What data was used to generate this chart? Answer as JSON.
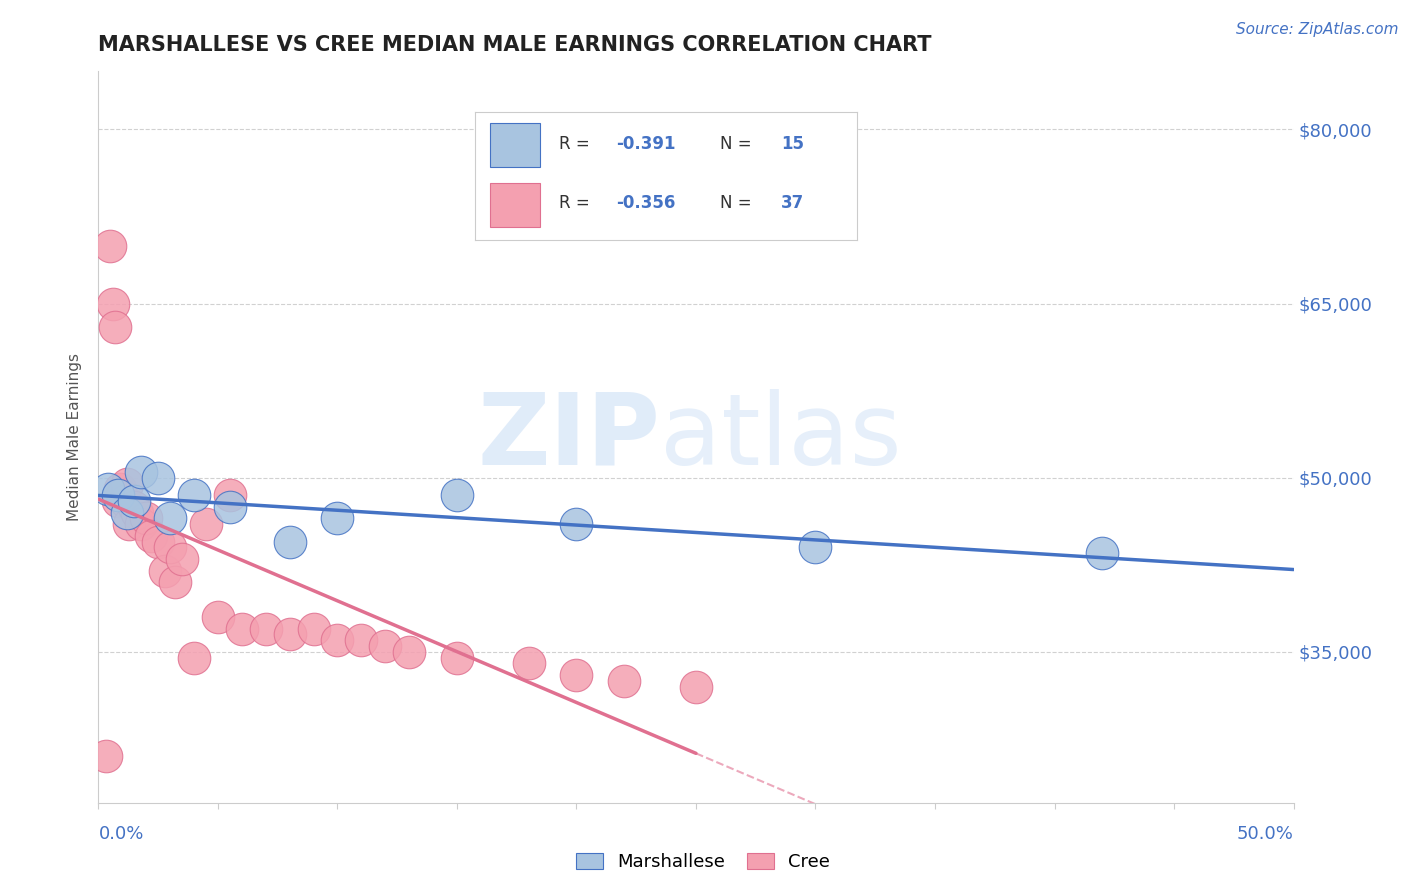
{
  "title": "MARSHALLESE VS CREE MEDIAN MALE EARNINGS CORRELATION CHART",
  "source_text": "Source: ZipAtlas.com",
  "ylabel": "Median Male Earnings",
  "y_ticks": [
    35000,
    50000,
    65000,
    80000
  ],
  "y_tick_labels": [
    "$35,000",
    "$50,000",
    "$65,000",
    "$80,000"
  ],
  "x_range": [
    0.0,
    50.0
  ],
  "y_range": [
    22000,
    85000
  ],
  "marshallese_color": "#a8c4e0",
  "cree_color": "#f4a0b0",
  "marshallese_line_color": "#4472c4",
  "cree_line_color": "#e07090",
  "title_color": "#222222",
  "axis_label_color": "#4472c4",
  "marshallese_x": [
    0.4,
    0.8,
    1.2,
    1.5,
    1.8,
    2.5,
    3.0,
    4.0,
    5.5,
    8.0,
    10.0,
    15.0,
    20.0,
    30.0,
    42.0
  ],
  "marshallese_y": [
    49000,
    48500,
    47000,
    48000,
    50500,
    50000,
    46500,
    48500,
    47500,
    44500,
    46500,
    48500,
    46000,
    44000,
    43500
  ],
  "cree_x": [
    0.3,
    0.5,
    0.6,
    0.7,
    0.8,
    0.9,
    1.0,
    1.1,
    1.2,
    1.3,
    1.5,
    1.6,
    1.8,
    2.0,
    2.2,
    2.5,
    2.8,
    3.0,
    3.2,
    3.5,
    4.0,
    4.5,
    5.0,
    5.5,
    6.0,
    7.0,
    8.0,
    9.0,
    10.0,
    11.0,
    12.0,
    13.0,
    15.0,
    18.0,
    20.0,
    22.0,
    25.0
  ],
  "cree_y": [
    26000,
    70000,
    65000,
    63000,
    48000,
    49000,
    48500,
    48000,
    49500,
    46000,
    47500,
    47000,
    46000,
    46500,
    45000,
    44500,
    42000,
    44000,
    41000,
    43000,
    34500,
    46000,
    38000,
    48500,
    37000,
    37000,
    36500,
    37000,
    36000,
    36000,
    35500,
    35000,
    34500,
    34000,
    33000,
    32500,
    32000
  ]
}
